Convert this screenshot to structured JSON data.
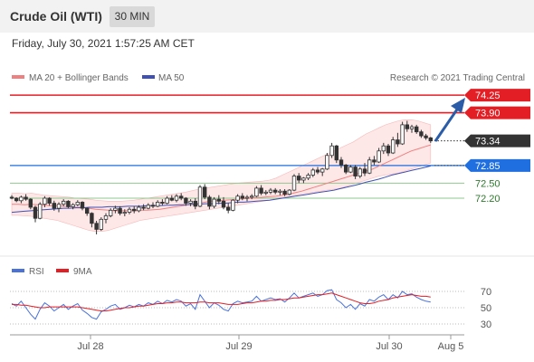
{
  "header": {
    "title": "Crude Oil (WTI)",
    "interval": "30 MIN"
  },
  "datetime": "Friday, July 30, 2021 1:57:25 AM CET",
  "copyright": "Research © 2021 Trading Central",
  "legend": {
    "ma20": "MA 20 + Bollinger Bands",
    "ma50": "MA 50",
    "rsi": "RSI",
    "rsi_ma": "9MA"
  },
  "colors": {
    "up": "#ffffff",
    "down": "#333333",
    "resistance": "#e31e24",
    "support": "#1f6fe0",
    "minor_support": "#8fc98f",
    "bollinger": "#fbd3d3",
    "ma20": "#f08080",
    "ma50": "#3f51b5",
    "rsi": "#4a72d9",
    "rsi_ma": "#e31e24",
    "arrow": "#2a5ca8"
  },
  "levels": [
    {
      "value": "74.25",
      "type": "resistance"
    },
    {
      "value": "73.90",
      "type": "resistance"
    },
    {
      "value": "73.34",
      "type": "last"
    },
    {
      "value": "72.85",
      "type": "pivot"
    },
    {
      "value": "72.50",
      "type": "support"
    },
    {
      "value": "72.20",
      "type": "support"
    }
  ],
  "chart_data": [
    {
      "type": "candlestick",
      "y_range": [
        71.3,
        74.4
      ],
      "x_ticks": [
        "Jul 28",
        "Jul 29",
        "Jul 30",
        "Aug 5"
      ],
      "ohlc": [
        [
          72.22,
          72.26,
          72.18,
          72.2
        ],
        [
          72.2,
          72.22,
          72.12,
          72.15
        ],
        [
          72.15,
          72.25,
          72.1,
          72.22
        ],
        [
          72.22,
          72.28,
          72.15,
          72.18
        ],
        [
          72.18,
          72.2,
          71.98,
          72.02
        ],
        [
          72.02,
          72.05,
          71.72,
          71.8
        ],
        [
          71.8,
          72.12,
          71.78,
          72.08
        ],
        [
          72.08,
          72.24,
          72.02,
          72.2
        ],
        [
          72.2,
          72.22,
          72.05,
          72.1
        ],
        [
          72.1,
          72.15,
          71.95,
          72.0
        ],
        [
          72.0,
          72.12,
          71.92,
          72.08
        ],
        [
          72.08,
          72.18,
          72.04,
          72.14
        ],
        [
          72.14,
          72.16,
          72.0,
          72.03
        ],
        [
          72.03,
          72.1,
          71.98,
          72.07
        ],
        [
          72.07,
          72.16,
          72.04,
          72.12
        ],
        [
          72.12,
          72.14,
          71.96,
          72.0
        ],
        [
          72.0,
          72.02,
          71.85,
          71.9
        ],
        [
          71.9,
          71.92,
          71.62,
          71.7
        ],
        [
          71.7,
          71.75,
          71.48,
          71.58
        ],
        [
          71.58,
          71.82,
          71.55,
          71.78
        ],
        [
          71.78,
          71.9,
          71.7,
          71.85
        ],
        [
          71.85,
          72.0,
          71.82,
          71.96
        ],
        [
          71.96,
          72.05,
          71.9,
          72.0
        ],
        [
          72.0,
          72.04,
          71.86,
          71.9
        ],
        [
          71.9,
          71.98,
          71.84,
          71.92
        ],
        [
          71.92,
          72.02,
          71.88,
          71.98
        ],
        [
          71.98,
          72.04,
          71.9,
          71.95
        ],
        [
          71.95,
          72.06,
          71.92,
          72.02
        ],
        [
          72.02,
          72.08,
          71.96,
          72.0
        ],
        [
          72.0,
          72.1,
          71.98,
          72.06
        ],
        [
          72.06,
          72.12,
          72.0,
          72.04
        ],
        [
          72.04,
          72.16,
          72.02,
          72.12
        ],
        [
          72.12,
          72.18,
          72.06,
          72.1
        ],
        [
          72.1,
          72.24,
          72.08,
          72.2
        ],
        [
          72.2,
          72.26,
          72.14,
          72.16
        ],
        [
          72.16,
          72.28,
          72.12,
          72.24
        ],
        [
          72.24,
          72.3,
          72.16,
          72.2
        ],
        [
          72.2,
          72.22,
          72.05,
          72.1
        ],
        [
          72.1,
          72.18,
          72.04,
          72.14
        ],
        [
          72.14,
          72.2,
          71.98,
          72.04
        ],
        [
          72.04,
          72.46,
          72.02,
          72.42
        ],
        [
          72.42,
          72.48,
          72.18,
          72.22
        ],
        [
          72.22,
          72.26,
          71.98,
          72.04
        ],
        [
          72.04,
          72.22,
          72.0,
          72.18
        ],
        [
          72.18,
          72.26,
          72.08,
          72.14
        ],
        [
          72.14,
          72.22,
          71.98,
          72.02
        ],
        [
          72.02,
          72.1,
          71.9,
          71.96
        ],
        [
          71.96,
          72.18,
          71.94,
          72.16
        ],
        [
          72.16,
          72.28,
          72.1,
          72.24
        ],
        [
          72.24,
          72.3,
          72.16,
          72.2
        ],
        [
          72.2,
          72.26,
          72.14,
          72.22
        ],
        [
          72.22,
          72.28,
          72.18,
          72.24
        ],
        [
          72.24,
          72.44,
          72.22,
          72.4
        ],
        [
          72.4,
          72.46,
          72.26,
          72.3
        ],
        [
          72.3,
          72.36,
          72.26,
          72.32
        ],
        [
          72.32,
          72.4,
          72.28,
          72.36
        ],
        [
          72.36,
          72.4,
          72.28,
          72.32
        ],
        [
          72.32,
          72.38,
          72.26,
          72.34
        ],
        [
          72.34,
          72.38,
          72.24,
          72.28
        ],
        [
          72.28,
          72.38,
          72.26,
          72.36
        ],
        [
          72.36,
          72.68,
          72.34,
          72.64
        ],
        [
          72.64,
          72.7,
          72.5,
          72.56
        ],
        [
          72.56,
          72.62,
          72.5,
          72.6
        ],
        [
          72.6,
          72.7,
          72.56,
          72.66
        ],
        [
          72.66,
          72.8,
          72.62,
          72.76
        ],
        [
          72.76,
          72.82,
          72.68,
          72.72
        ],
        [
          72.72,
          72.8,
          72.64,
          72.78
        ],
        [
          72.78,
          73.1,
          72.76,
          73.05
        ],
        [
          73.05,
          73.3,
          73.0,
          73.24
        ],
        [
          73.24,
          73.26,
          72.9,
          72.96
        ],
        [
          72.96,
          73.02,
          72.8,
          72.86
        ],
        [
          72.86,
          72.88,
          72.68,
          72.72
        ],
        [
          72.72,
          72.86,
          72.7,
          72.82
        ],
        [
          72.82,
          72.86,
          72.58,
          72.64
        ],
        [
          72.64,
          72.82,
          72.6,
          72.78
        ],
        [
          72.78,
          72.9,
          72.64,
          72.7
        ],
        [
          72.7,
          73.02,
          72.68,
          72.96
        ],
        [
          72.96,
          73.04,
          72.86,
          72.92
        ],
        [
          72.92,
          73.2,
          72.9,
          73.14
        ],
        [
          73.14,
          73.3,
          73.08,
          73.24
        ],
        [
          73.24,
          73.28,
          73.04,
          73.1
        ],
        [
          73.1,
          73.42,
          73.08,
          73.36
        ],
        [
          73.36,
          73.5,
          73.22,
          73.28
        ],
        [
          73.28,
          73.72,
          73.26,
          73.66
        ],
        [
          73.66,
          73.74,
          73.52,
          73.58
        ],
        [
          73.58,
          73.66,
          73.5,
          73.62
        ],
        [
          73.62,
          73.66,
          73.48,
          73.52
        ],
        [
          73.52,
          73.56,
          73.4,
          73.44
        ],
        [
          73.44,
          73.48,
          73.36,
          73.4
        ],
        [
          73.4,
          73.42,
          73.3,
          73.34
        ]
      ],
      "ma20": [
        72.08,
        72.08,
        72.07,
        72.08,
        72.07,
        72.06,
        72.05,
        72.05,
        72.04,
        72.03,
        72.02,
        72.02,
        72.0,
        71.98,
        71.97,
        71.96,
        71.95,
        71.95,
        71.95,
        71.95,
        71.96,
        71.96,
        71.97,
        71.98,
        72.0,
        72.02,
        72.04,
        72.06,
        72.08,
        72.1,
        72.12,
        72.14,
        72.15,
        72.16,
        72.17,
        72.18,
        72.19,
        72.2,
        72.21,
        72.22,
        72.23,
        72.24,
        72.26,
        72.28,
        72.31,
        72.34,
        72.38,
        72.42,
        72.46,
        72.5,
        72.54,
        72.58,
        72.62,
        72.66,
        72.7,
        72.74,
        72.78,
        72.84,
        72.9,
        72.96,
        73.02,
        73.08,
        73.14,
        73.18,
        73.22,
        73.26
      ],
      "bb_upper": [
        72.3,
        72.3,
        72.29,
        72.3,
        72.28,
        72.26,
        72.25,
        72.24,
        72.23,
        72.22,
        72.2,
        72.19,
        72.18,
        72.16,
        72.15,
        72.14,
        72.14,
        72.14,
        72.15,
        72.16,
        72.18,
        72.2,
        72.22,
        72.24,
        72.26,
        72.28,
        72.3,
        72.32,
        72.35,
        72.38,
        72.4,
        72.42,
        72.44,
        72.46,
        72.48,
        72.5,
        72.51,
        72.52,
        72.53,
        72.54,
        72.56,
        72.6,
        72.66,
        72.72,
        72.78,
        72.84,
        72.9,
        72.96,
        73.02,
        73.08,
        73.14,
        73.2,
        73.26,
        73.32,
        73.4,
        73.48,
        73.54,
        73.6,
        73.66,
        73.7,
        73.74,
        73.76,
        73.76,
        73.74,
        73.7,
        73.66
      ],
      "bb_lower": [
        71.86,
        71.86,
        71.85,
        71.84,
        71.82,
        71.8,
        71.78,
        71.76,
        71.72,
        71.68,
        71.64,
        71.6,
        71.56,
        71.54,
        71.54,
        71.56,
        71.6,
        71.64,
        71.68,
        71.72,
        71.76,
        71.78,
        71.8,
        71.82,
        71.84,
        71.86,
        71.88,
        71.9,
        71.92,
        71.94,
        71.96,
        71.98,
        72.0,
        72.02,
        72.04,
        72.06,
        72.08,
        72.1,
        72.12,
        72.14,
        72.16,
        72.2,
        72.22,
        72.24,
        72.26,
        72.28,
        72.3,
        72.32,
        72.34,
        72.36,
        72.38,
        72.4,
        72.44,
        72.48,
        72.52,
        72.56,
        72.6,
        72.64,
        72.66,
        72.68,
        72.7,
        72.74,
        72.78,
        72.82,
        72.86,
        72.9
      ],
      "ma50": [
        71.92,
        71.93,
        71.94,
        71.95,
        71.96,
        71.97,
        71.98,
        71.99,
        72.0,
        72.0,
        72.01,
        72.01,
        72.02,
        72.02,
        72.02,
        72.03,
        72.03,
        72.03,
        72.04,
        72.04,
        72.04,
        72.05,
        72.05,
        72.05,
        72.06,
        72.06,
        72.07,
        72.07,
        72.08,
        72.08,
        72.09,
        72.09,
        72.1,
        72.1,
        72.11,
        72.12,
        72.12,
        72.13,
        72.14,
        72.15,
        72.16,
        72.18,
        72.2,
        72.22,
        72.24,
        72.26,
        72.28,
        72.3,
        72.32,
        72.34,
        72.36,
        72.39,
        72.42,
        72.45,
        72.48,
        72.52,
        72.55,
        72.58,
        72.62,
        72.66,
        72.69,
        72.72,
        72.75,
        72.78,
        72.81,
        72.84
      ]
    },
    {
      "type": "line",
      "y_ticks": [
        70,
        50,
        30
      ],
      "ylim": [
        20,
        80
      ],
      "series": [
        {
          "name": "RSI",
          "values": [
            55,
            52,
            58,
            50,
            42,
            36,
            48,
            56,
            52,
            46,
            50,
            54,
            48,
            52,
            55,
            47,
            43,
            38,
            36,
            45,
            48,
            52,
            54,
            48,
            50,
            53,
            51,
            54,
            52,
            56,
            54,
            58,
            55,
            59,
            57,
            60,
            58,
            52,
            55,
            48,
            66,
            58,
            50,
            56,
            53,
            48,
            46,
            55,
            58,
            56,
            57,
            58,
            64,
            58,
            60,
            62,
            60,
            61,
            57,
            62,
            68,
            62,
            64,
            66,
            68,
            64,
            66,
            71,
            72,
            60,
            56,
            50,
            54,
            48,
            55,
            52,
            60,
            58,
            63,
            66,
            60,
            66,
            62,
            70,
            66,
            67,
            63,
            60,
            58,
            57
          ]
        },
        {
          "name": "9MA",
          "values": [
            54,
            54,
            53,
            53,
            52,
            51,
            50,
            50,
            51,
            51,
            51,
            51,
            51,
            51,
            51,
            50,
            49,
            48,
            47,
            46,
            46,
            47,
            48,
            49,
            50,
            50,
            51,
            52,
            52,
            53,
            54,
            55,
            55,
            56,
            56,
            57,
            57,
            56,
            56,
            56,
            57,
            57,
            56,
            56,
            56,
            55,
            54,
            54,
            54,
            55,
            56,
            56,
            57,
            58,
            58,
            59,
            59,
            60,
            60,
            61,
            62,
            62,
            63,
            64,
            65,
            66,
            66,
            67,
            68,
            66,
            64,
            62,
            60,
            58,
            56,
            55,
            55,
            56,
            58,
            59,
            60,
            62,
            63,
            64,
            65,
            66,
            65,
            64,
            64,
            63
          ]
        }
      ]
    }
  ]
}
